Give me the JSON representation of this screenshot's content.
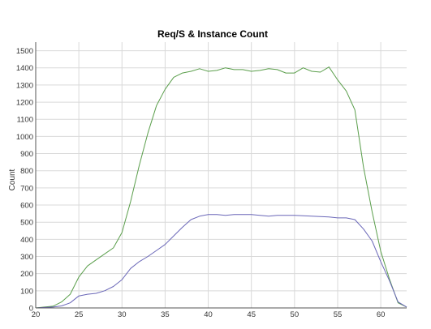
{
  "chart_data": {
    "type": "line",
    "title": "Req/S & Instance Count",
    "xlabel": "",
    "ylabel": "Count",
    "xlim": [
      20,
      63
    ],
    "ylim": [
      0,
      1550
    ],
    "x_ticks": [
      20,
      25,
      30,
      35,
      40,
      45,
      50,
      55,
      60
    ],
    "y_ticks": [
      0,
      100,
      200,
      300,
      400,
      500,
      600,
      700,
      800,
      900,
      1000,
      1100,
      1200,
      1300,
      1400,
      1500
    ],
    "grid": true,
    "series": [
      {
        "color": "#5a9e4b",
        "x": [
          20,
          21,
          22,
          23,
          24,
          25,
          26,
          27,
          28,
          29,
          30,
          31,
          32,
          33,
          34,
          35,
          36,
          37,
          38,
          39,
          40,
          41,
          42,
          43,
          44,
          45,
          46,
          47,
          48,
          49,
          50,
          51,
          52,
          53,
          54,
          55,
          56,
          57,
          58,
          59,
          60,
          61,
          62,
          63
        ],
        "values": [
          0,
          5,
          10,
          35,
          80,
          180,
          245,
          280,
          315,
          350,
          440,
          620,
          830,
          1020,
          1180,
          1275,
          1345,
          1370,
          1380,
          1395,
          1380,
          1385,
          1400,
          1390,
          1390,
          1380,
          1385,
          1395,
          1390,
          1370,
          1370,
          1400,
          1380,
          1375,
          1405,
          1330,
          1265,
          1155,
          820,
          560,
          330,
          170,
          30,
          5
        ]
      },
      {
        "color": "#6a67b8",
        "x": [
          20,
          21,
          22,
          23,
          24,
          25,
          26,
          27,
          28,
          29,
          30,
          31,
          32,
          33,
          34,
          35,
          36,
          37,
          38,
          39,
          40,
          41,
          42,
          43,
          44,
          45,
          46,
          47,
          48,
          49,
          50,
          51,
          52,
          53,
          54,
          55,
          56,
          57,
          58,
          59,
          60,
          61,
          62,
          63
        ],
        "values": [
          0,
          3,
          5,
          12,
          30,
          70,
          80,
          85,
          100,
          125,
          165,
          230,
          270,
          300,
          335,
          370,
          420,
          470,
          515,
          535,
          545,
          545,
          540,
          545,
          545,
          545,
          540,
          535,
          540,
          540,
          540,
          538,
          535,
          533,
          530,
          525,
          525,
          515,
          460,
          390,
          270,
          160,
          35,
          5
        ]
      }
    ]
  }
}
